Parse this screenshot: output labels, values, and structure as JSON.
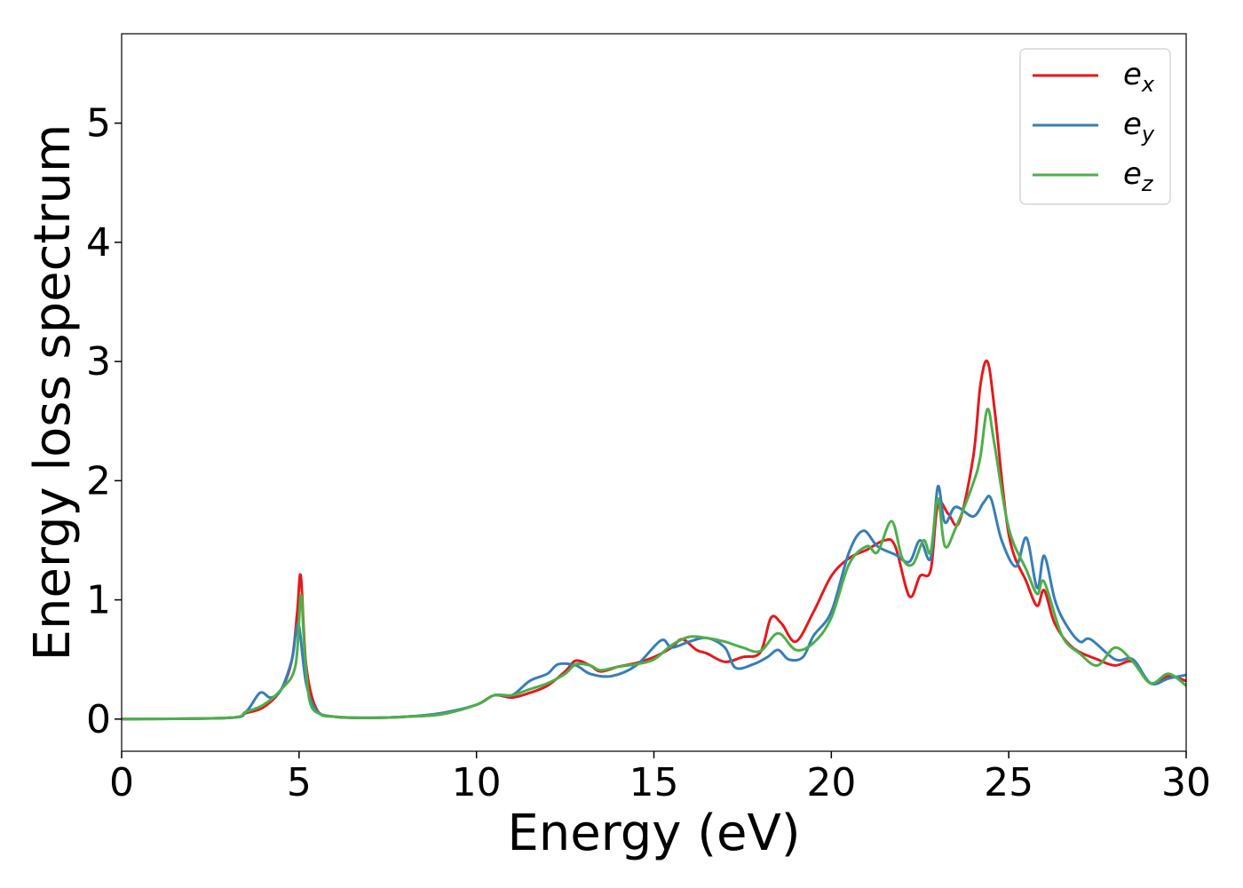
{
  "chart_data": {
    "type": "line",
    "title": "",
    "xlabel": "Energy (eV)",
    "ylabel": "Energy loss spectrum",
    "xlim": [
      0,
      30
    ],
    "ylim": [
      -0.27,
      5.75
    ],
    "xticks": [
      0,
      5,
      10,
      15,
      20,
      25,
      30
    ],
    "yticks": [
      0,
      1,
      2,
      3,
      4,
      5
    ],
    "xtick_labels": [
      "0",
      "5",
      "10",
      "15",
      "20",
      "25",
      "30"
    ],
    "ytick_labels": [
      "0",
      "1",
      "2",
      "3",
      "4",
      "5"
    ],
    "grid": false,
    "legend": {
      "position": "top-right",
      "entries": [
        {
          "base": "e",
          "sub": "x"
        },
        {
          "base": "e",
          "sub": "y"
        },
        {
          "base": "e",
          "sub": "z"
        }
      ]
    },
    "series": [
      {
        "name": "e_x",
        "color": "#e41a1c",
        "x": [
          0,
          3,
          3.5,
          4,
          4.5,
          4.8,
          4.95,
          5.05,
          5.2,
          5.5,
          6,
          7,
          8,
          9,
          10,
          10.5,
          11,
          11.5,
          12,
          12.5,
          12.8,
          13.2,
          13.5,
          14,
          14.5,
          15,
          15.5,
          15.8,
          16.2,
          16.5,
          17,
          17.5,
          18,
          18.3,
          18.6,
          19,
          19.5,
          20,
          20.5,
          21,
          21.5,
          21.8,
          22.2,
          22.5,
          22.8,
          23,
          23.3,
          23.6,
          24,
          24.2,
          24.4,
          24.6,
          25,
          25.5,
          25.8,
          26,
          26.3,
          26.8,
          27.5,
          28,
          28.5,
          29,
          29.5,
          30
        ],
        "y": [
          0,
          0.01,
          0.05,
          0.1,
          0.25,
          0.5,
          0.9,
          1.2,
          0.45,
          0.08,
          0.02,
          0.01,
          0.02,
          0.04,
          0.12,
          0.2,
          0.18,
          0.22,
          0.28,
          0.4,
          0.49,
          0.45,
          0.4,
          0.44,
          0.47,
          0.52,
          0.6,
          0.67,
          0.58,
          0.55,
          0.48,
          0.52,
          0.56,
          0.85,
          0.8,
          0.65,
          0.9,
          1.2,
          1.35,
          1.42,
          1.5,
          1.45,
          1.03,
          1.2,
          1.25,
          1.8,
          1.72,
          1.65,
          2.2,
          2.8,
          3.0,
          2.6,
          1.55,
          1.15,
          0.95,
          1.08,
          0.8,
          0.6,
          0.5,
          0.45,
          0.48,
          0.3,
          0.36,
          0.32
        ]
      },
      {
        "name": "e_y",
        "color": "#377eb8",
        "x": [
          0,
          3,
          3.5,
          3.9,
          4.2,
          4.5,
          4.8,
          4.9,
          5.0,
          5.2,
          5.5,
          6,
          7,
          8,
          9,
          10,
          10.5,
          11,
          11.5,
          12,
          12.3,
          12.8,
          13.2,
          13.8,
          14.5,
          15.2,
          15.5,
          16,
          16.5,
          17,
          17.3,
          17.8,
          18.2,
          18.5,
          18.8,
          19.2,
          19.5,
          20,
          20.5,
          20.9,
          21.3,
          21.8,
          22.2,
          22.5,
          22.8,
          23,
          23.2,
          23.5,
          24,
          24.3,
          24.5,
          24.8,
          25.2,
          25.5,
          25.8,
          26,
          26.3,
          26.6,
          27,
          27.3,
          28,
          28.5,
          29,
          29.5,
          30
        ],
        "y": [
          0,
          0.01,
          0.06,
          0.22,
          0.18,
          0.25,
          0.5,
          0.7,
          0.78,
          0.3,
          0.07,
          0.02,
          0.01,
          0.02,
          0.05,
          0.12,
          0.2,
          0.2,
          0.32,
          0.38,
          0.46,
          0.45,
          0.38,
          0.36,
          0.45,
          0.66,
          0.6,
          0.65,
          0.68,
          0.6,
          0.43,
          0.46,
          0.52,
          0.58,
          0.5,
          0.52,
          0.7,
          0.9,
          1.4,
          1.58,
          1.45,
          1.38,
          1.32,
          1.5,
          1.35,
          1.95,
          1.65,
          1.78,
          1.7,
          1.82,
          1.85,
          1.5,
          1.28,
          1.52,
          1.1,
          1.37,
          1.0,
          0.8,
          0.65,
          0.67,
          0.5,
          0.5,
          0.3,
          0.34,
          0.37
        ]
      },
      {
        "name": "e_z",
        "color": "#4daf4a",
        "x": [
          0,
          3,
          3.5,
          4,
          4.5,
          4.9,
          5.05,
          5.15,
          5.3,
          5.6,
          6,
          7,
          8,
          9,
          10,
          10.5,
          11,
          11.5,
          12,
          12.5,
          12.8,
          13.2,
          13.5,
          14,
          14.5,
          15,
          15.5,
          16,
          16.5,
          17,
          17.5,
          18,
          18.5,
          19,
          19.5,
          20,
          20.5,
          21,
          21.3,
          21.7,
          22,
          22.3,
          22.6,
          22.8,
          23,
          23.2,
          23.5,
          24,
          24.2,
          24.4,
          24.6,
          25,
          25.5,
          25.8,
          26,
          26.5,
          27,
          27.5,
          28,
          28.5,
          29,
          29.5,
          30
        ],
        "y": [
          0,
          0.01,
          0.06,
          0.12,
          0.25,
          0.45,
          1.04,
          0.6,
          0.15,
          0.04,
          0.02,
          0.01,
          0.02,
          0.04,
          0.12,
          0.2,
          0.2,
          0.25,
          0.3,
          0.38,
          0.46,
          0.45,
          0.41,
          0.44,
          0.46,
          0.5,
          0.62,
          0.69,
          0.68,
          0.65,
          0.6,
          0.57,
          0.72,
          0.58,
          0.64,
          0.85,
          1.3,
          1.45,
          1.4,
          1.66,
          1.35,
          1.3,
          1.5,
          1.4,
          1.85,
          1.45,
          1.6,
          1.98,
          2.2,
          2.6,
          2.3,
          1.6,
          1.25,
          1.05,
          1.15,
          0.7,
          0.55,
          0.45,
          0.6,
          0.48,
          0.3,
          0.38,
          0.28
        ]
      }
    ]
  }
}
